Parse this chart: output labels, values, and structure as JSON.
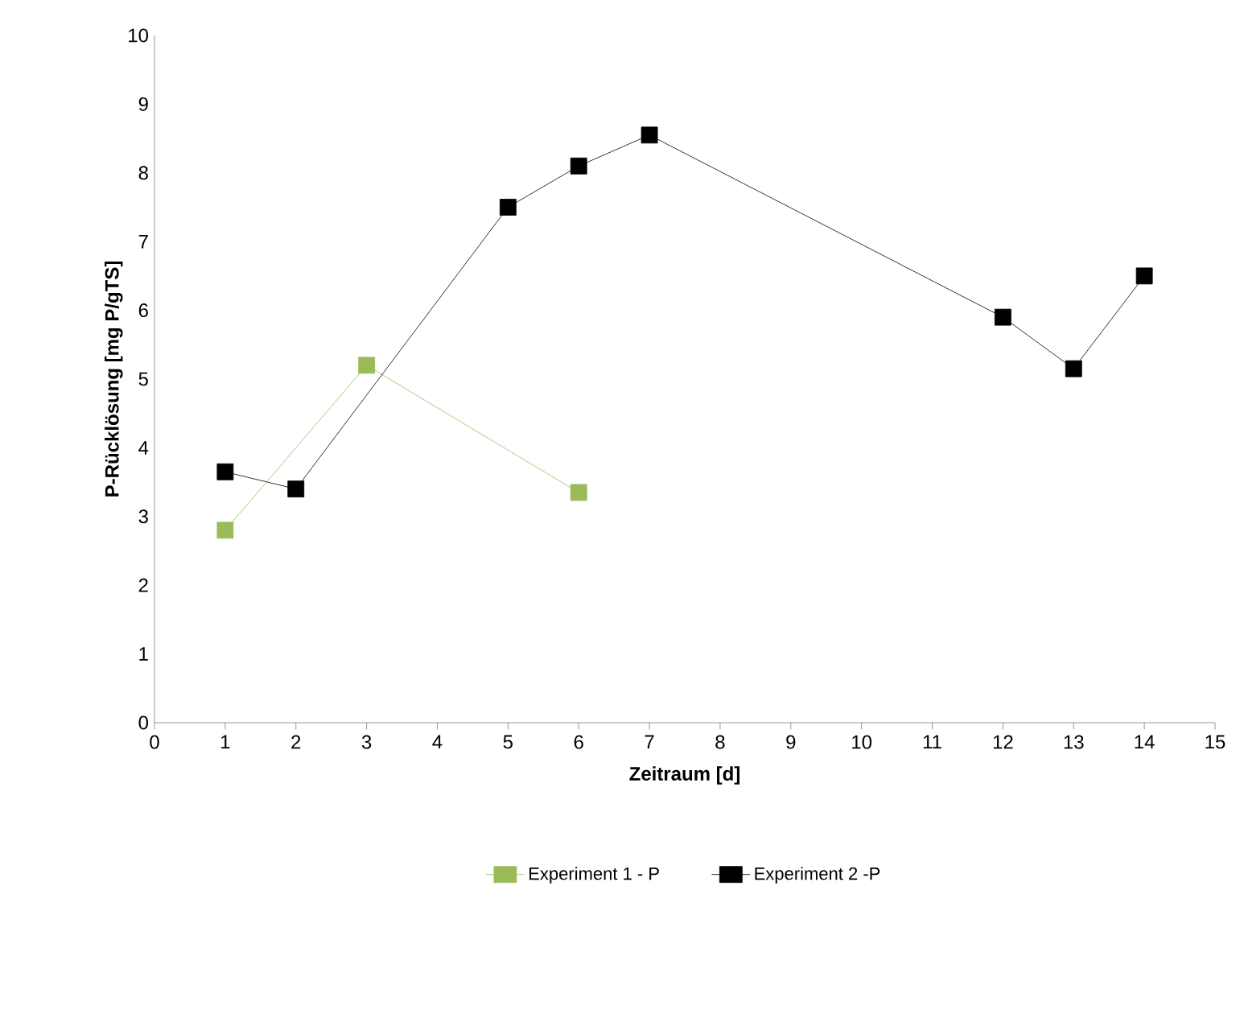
{
  "chart_data": {
    "type": "line",
    "xlabel": "Zeitraum [d]",
    "ylabel": "P-Rücklösung  [mg P/gTS]",
    "xlim": [
      0,
      15
    ],
    "xticks": [
      0,
      1,
      2,
      3,
      4,
      5,
      6,
      7,
      8,
      9,
      10,
      11,
      12,
      13,
      14,
      15
    ],
    "ylim": [
      0,
      10
    ],
    "yticks": [
      0,
      1,
      2,
      3,
      4,
      5,
      6,
      7,
      8,
      9,
      10
    ],
    "marker": "square",
    "line_style": "solid",
    "grid": false,
    "legend": "bottom",
    "series": [
      {
        "name": "Experiment 1 - P",
        "color": "#9bbb59",
        "x": [
          1,
          3,
          6
        ],
        "values": [
          2.8,
          5.2,
          3.35
        ]
      },
      {
        "name": "Experiment 2 -P",
        "color": "#000000",
        "x": [
          1,
          2,
          5,
          6,
          7,
          12,
          13,
          14
        ],
        "values": [
          3.65,
          3.4,
          7.5,
          8.1,
          8.55,
          5.9,
          5.15,
          6.5
        ]
      }
    ]
  }
}
